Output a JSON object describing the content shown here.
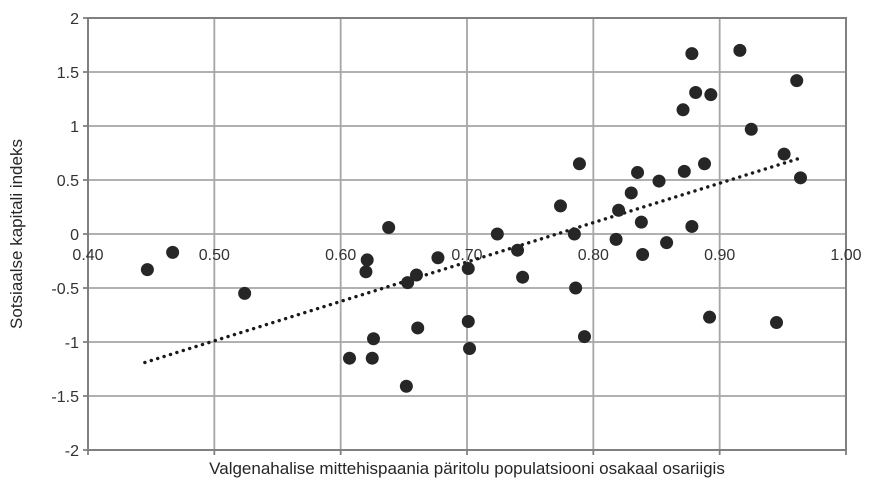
{
  "chart_data": {
    "type": "scatter",
    "title": "",
    "xlabel": "Valgenahalise mittehispaania päritolu populatsiooni osakaal osariigis",
    "ylabel": "Sotsiaalse kapitali indeks",
    "xlim": [
      0.4,
      1.0
    ],
    "ylim": [
      -2,
      2
    ],
    "x_tick_labels": [
      "0.40",
      "0.50",
      "0.60",
      "0.70",
      "0.80",
      "0.90",
      "1.00"
    ],
    "x_tick_values": [
      0.4,
      0.5,
      0.6,
      0.7,
      0.8,
      0.9,
      1.0
    ],
    "y_tick_labels": [
      "2",
      "1.5",
      "1",
      "0.5",
      "0",
      "-0.5",
      "-1",
      "-1.5",
      "-2"
    ],
    "y_tick_values": [
      2,
      1.5,
      1,
      0.5,
      0,
      -0.5,
      -1,
      -1.5,
      -2
    ],
    "grid": true,
    "legend": "none",
    "x_labels_position": "at-zero-line",
    "points": [
      [
        0.447,
        -0.33
      ],
      [
        0.467,
        -0.17
      ],
      [
        0.524,
        -0.55
      ],
      [
        0.607,
        -1.15
      ],
      [
        0.62,
        -0.35
      ],
      [
        0.621,
        -0.24
      ],
      [
        0.625,
        -1.15
      ],
      [
        0.626,
        -0.97
      ],
      [
        0.638,
        0.06
      ],
      [
        0.652,
        -1.41
      ],
      [
        0.653,
        -0.45
      ],
      [
        0.66,
        -0.38
      ],
      [
        0.661,
        -0.87
      ],
      [
        0.677,
        -0.22
      ],
      [
        0.701,
        -0.32
      ],
      [
        0.701,
        -0.81
      ],
      [
        0.702,
        -1.06
      ],
      [
        0.724,
        0.0
      ],
      [
        0.74,
        -0.15
      ],
      [
        0.744,
        -0.4
      ],
      [
        0.774,
        0.26
      ],
      [
        0.785,
        0.0
      ],
      [
        0.786,
        -0.5
      ],
      [
        0.789,
        0.65
      ],
      [
        0.793,
        -0.95
      ],
      [
        0.818,
        -0.05
      ],
      [
        0.82,
        0.22
      ],
      [
        0.83,
        0.38
      ],
      [
        0.835,
        0.57
      ],
      [
        0.838,
        0.11
      ],
      [
        0.839,
        -0.19
      ],
      [
        0.852,
        0.49
      ],
      [
        0.858,
        -0.08
      ],
      [
        0.871,
        1.15
      ],
      [
        0.872,
        0.58
      ],
      [
        0.878,
        0.07
      ],
      [
        0.878,
        1.67
      ],
      [
        0.881,
        1.31
      ],
      [
        0.888,
        0.65
      ],
      [
        0.892,
        -0.77
      ],
      [
        0.893,
        1.29
      ],
      [
        0.916,
        1.7
      ],
      [
        0.925,
        0.97
      ],
      [
        0.945,
        -0.82
      ],
      [
        0.951,
        0.74
      ],
      [
        0.961,
        1.42
      ],
      [
        0.964,
        0.52
      ]
    ],
    "trendline": {
      "style": "dotted",
      "x_start": 0.445,
      "y_start": -1.19,
      "x_end": 0.963,
      "y_end": 0.7
    },
    "colors": {
      "point": "#262626",
      "trendline": "#1a1a1a",
      "gridline": "#a6a6a6",
      "border": "#808080",
      "tick_text": "#333333",
      "title_text": "#262626",
      "background": "#ffffff"
    }
  }
}
